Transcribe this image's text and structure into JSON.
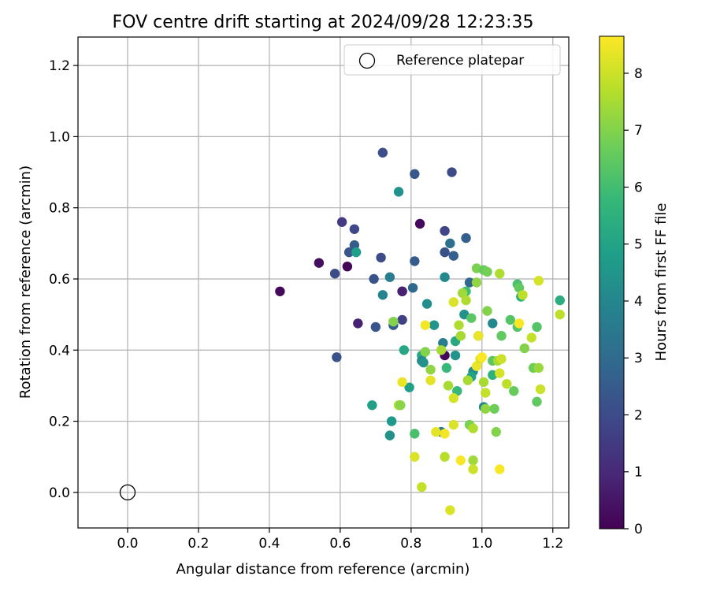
{
  "chart_data": {
    "type": "scatter",
    "title": "FOV centre drift starting at 2024/09/28 12:23:35",
    "xlabel": "Angular distance from reference (arcmin)",
    "ylabel": "Rotation from reference (arcmin)",
    "xlim": [
      -0.14,
      1.245
    ],
    "ylim": [
      -0.1,
      1.28
    ],
    "xticks": [
      "0.0",
      "0.2",
      "0.4",
      "0.6",
      "0.8",
      "1.0",
      "1.2"
    ],
    "yticks": [
      "0.0",
      "0.2",
      "0.4",
      "0.6",
      "0.8",
      "1.0",
      "1.2"
    ],
    "grid": true,
    "legend": {
      "position": "top-right",
      "entries": [
        "Reference platepar"
      ]
    },
    "reference_point": {
      "x": 0.0,
      "y": 0.0
    },
    "colorbar": {
      "label": "Hours from first FF file",
      "colormap": "viridis",
      "range": [
        0,
        8.65
      ],
      "ticks": [
        "0",
        "1",
        "2",
        "3",
        "4",
        "5",
        "6",
        "7",
        "8"
      ]
    },
    "points": [
      [
        0.43,
        0.565,
        0.2
      ],
      [
        0.54,
        0.645,
        0.3
      ],
      [
        0.62,
        0.635,
        0.1
      ],
      [
        0.65,
        0.475,
        0.8
      ],
      [
        0.59,
        0.38,
        2.2
      ],
      [
        0.585,
        0.615,
        2.0
      ],
      [
        0.605,
        0.76,
        1.5
      ],
      [
        0.64,
        0.74,
        1.9
      ],
      [
        0.625,
        0.675,
        2.3
      ],
      [
        0.64,
        0.695,
        2.5
      ],
      [
        0.645,
        0.675,
        4.8
      ],
      [
        0.72,
        0.955,
        2.1
      ],
      [
        0.81,
        0.895,
        2.4
      ],
      [
        0.915,
        0.9,
        2.0
      ],
      [
        0.765,
        0.845,
        4.4
      ],
      [
        0.825,
        0.755,
        0.2
      ],
      [
        0.715,
        0.66,
        2.0
      ],
      [
        0.81,
        0.65,
        2.5
      ],
      [
        0.895,
        0.735,
        1.8
      ],
      [
        0.955,
        0.715,
        2.6
      ],
      [
        0.895,
        0.675,
        2.2
      ],
      [
        0.91,
        0.7,
        3.2
      ],
      [
        0.92,
        0.665,
        2.6
      ],
      [
        0.695,
        0.6,
        2.2
      ],
      [
        0.74,
        0.605,
        3.7
      ],
      [
        0.805,
        0.575,
        2.9
      ],
      [
        0.775,
        0.565,
        1.0
      ],
      [
        0.775,
        0.565,
        0.8
      ],
      [
        0.72,
        0.555,
        3.9
      ],
      [
        0.895,
        0.605,
        4.1
      ],
      [
        0.965,
        0.59,
        2.9
      ],
      [
        0.7,
        0.465,
        2.3
      ],
      [
        0.75,
        0.47,
        2.5
      ],
      [
        0.775,
        0.485,
        1.7
      ],
      [
        0.75,
        0.48,
        7.0
      ],
      [
        0.845,
        0.53,
        4.3
      ],
      [
        0.865,
        0.47,
        4.5
      ],
      [
        0.78,
        0.4,
        5.1
      ],
      [
        0.83,
        0.385,
        5.2
      ],
      [
        0.83,
        0.37,
        4.1
      ],
      [
        0.835,
        0.365,
        4.4
      ],
      [
        0.89,
        0.42,
        3.7
      ],
      [
        0.895,
        0.385,
        0.2
      ],
      [
        0.925,
        0.425,
        5.2
      ],
      [
        0.925,
        0.385,
        4.5
      ],
      [
        0.95,
        0.5,
        4.4
      ],
      [
        0.955,
        0.565,
        6.0
      ],
      [
        0.97,
        0.49,
        6.4
      ],
      [
        1.03,
        0.475,
        4.1
      ],
      [
        1.11,
        0.55,
        5.5
      ],
      [
        0.795,
        0.295,
        4.9
      ],
      [
        0.69,
        0.245,
        4.9
      ],
      [
        0.745,
        0.2,
        4.6
      ],
      [
        0.74,
        0.16,
        4.4
      ],
      [
        0.81,
        0.165,
        6.1
      ],
      [
        0.885,
        0.17,
        3.5
      ],
      [
        0.93,
        0.285,
        5.8
      ],
      [
        0.975,
        0.34,
        4.3
      ],
      [
        0.97,
        0.325,
        5.0
      ],
      [
        1.005,
        0.24,
        4.0
      ],
      [
        1.03,
        0.33,
        5.5
      ],
      [
        0.9,
        0.35,
        5.8
      ],
      [
        1.03,
        0.37,
        6.4
      ],
      [
        1.08,
        0.485,
        6.3
      ],
      [
        1.1,
        0.465,
        6.3
      ],
      [
        1.1,
        0.585,
        6.1
      ],
      [
        1.155,
        0.465,
        6.3
      ],
      [
        1.22,
        0.54,
        5.4
      ],
      [
        1.09,
        0.285,
        6.6
      ],
      [
        1.155,
        0.255,
        6.5
      ],
      [
        1.145,
        0.35,
        6.7
      ],
      [
        0.985,
        0.63,
        6.9
      ],
      [
        0.985,
        0.59,
        7.2
      ],
      [
        1.005,
        0.625,
        6.6
      ],
      [
        1.015,
        0.62,
        6.8
      ],
      [
        1.05,
        0.615,
        7.6
      ],
      [
        1.105,
        0.575,
        6.5
      ],
      [
        1.115,
        0.555,
        7.8
      ],
      [
        0.945,
        0.56,
        7.4
      ],
      [
        0.955,
        0.54,
        7.6
      ],
      [
        1.015,
        0.51,
        7.0
      ],
      [
        1.055,
        0.44,
        6.5
      ],
      [
        1.12,
        0.405,
        7.0
      ],
      [
        1.14,
        0.435,
        7.9
      ],
      [
        0.99,
        0.44,
        5.8
      ],
      [
        0.94,
        0.44,
        7.5
      ],
      [
        0.935,
        0.47,
        7.6
      ],
      [
        0.84,
        0.395,
        7.0
      ],
      [
        0.855,
        0.345,
        7.2
      ],
      [
        0.885,
        0.4,
        7.5
      ],
      [
        0.905,
        0.3,
        7.5
      ],
      [
        0.96,
        0.315,
        7.5
      ],
      [
        0.985,
        0.355,
        8.4
      ],
      [
        0.995,
        0.375,
        8.2
      ],
      [
        1.005,
        0.31,
        7.5
      ],
      [
        1.01,
        0.28,
        7.9
      ],
      [
        1.045,
        0.37,
        7.5
      ],
      [
        1.055,
        0.375,
        8.0
      ],
      [
        1.05,
        0.335,
        8.1
      ],
      [
        1.07,
        0.305,
        7.8
      ],
      [
        1.16,
        0.35,
        7.3
      ],
      [
        1.165,
        0.29,
        8.0
      ],
      [
        1.22,
        0.5,
        7.8
      ],
      [
        1.16,
        0.595,
        8.1
      ],
      [
        1.105,
        0.475,
        8.6
      ],
      [
        0.84,
        0.47,
        8.5
      ],
      [
        0.855,
        0.315,
        8.3
      ],
      [
        0.92,
        0.535,
        8.2
      ],
      [
        0.92,
        0.265,
        8.1
      ],
      [
        0.92,
        0.19,
        8.2
      ],
      [
        0.765,
        0.245,
        7.6
      ],
      [
        0.775,
        0.31,
        8.4
      ],
      [
        0.77,
        0.245,
        7.1
      ],
      [
        0.87,
        0.17,
        8.3
      ],
      [
        0.895,
        0.165,
        8.5
      ],
      [
        0.965,
        0.19,
        6.9
      ],
      [
        0.975,
        0.18,
        7.6
      ],
      [
        1.01,
        0.235,
        7.2
      ],
      [
        1.035,
        0.235,
        6.7
      ],
      [
        1.04,
        0.17,
        7.0
      ],
      [
        0.81,
        0.1,
        8.2
      ],
      [
        0.83,
        0.015,
        7.9
      ],
      [
        0.895,
        0.1,
        7.7
      ],
      [
        0.94,
        0.09,
        8.6
      ],
      [
        0.975,
        0.09,
        7.4
      ],
      [
        0.975,
        0.065,
        8.0
      ],
      [
        1.05,
        0.065,
        8.6
      ],
      [
        0.91,
        -0.05,
        8.2
      ],
      [
        1.0,
        0.38,
        8.6
      ],
      [
        0.99,
        0.44,
        8.4
      ]
    ]
  }
}
